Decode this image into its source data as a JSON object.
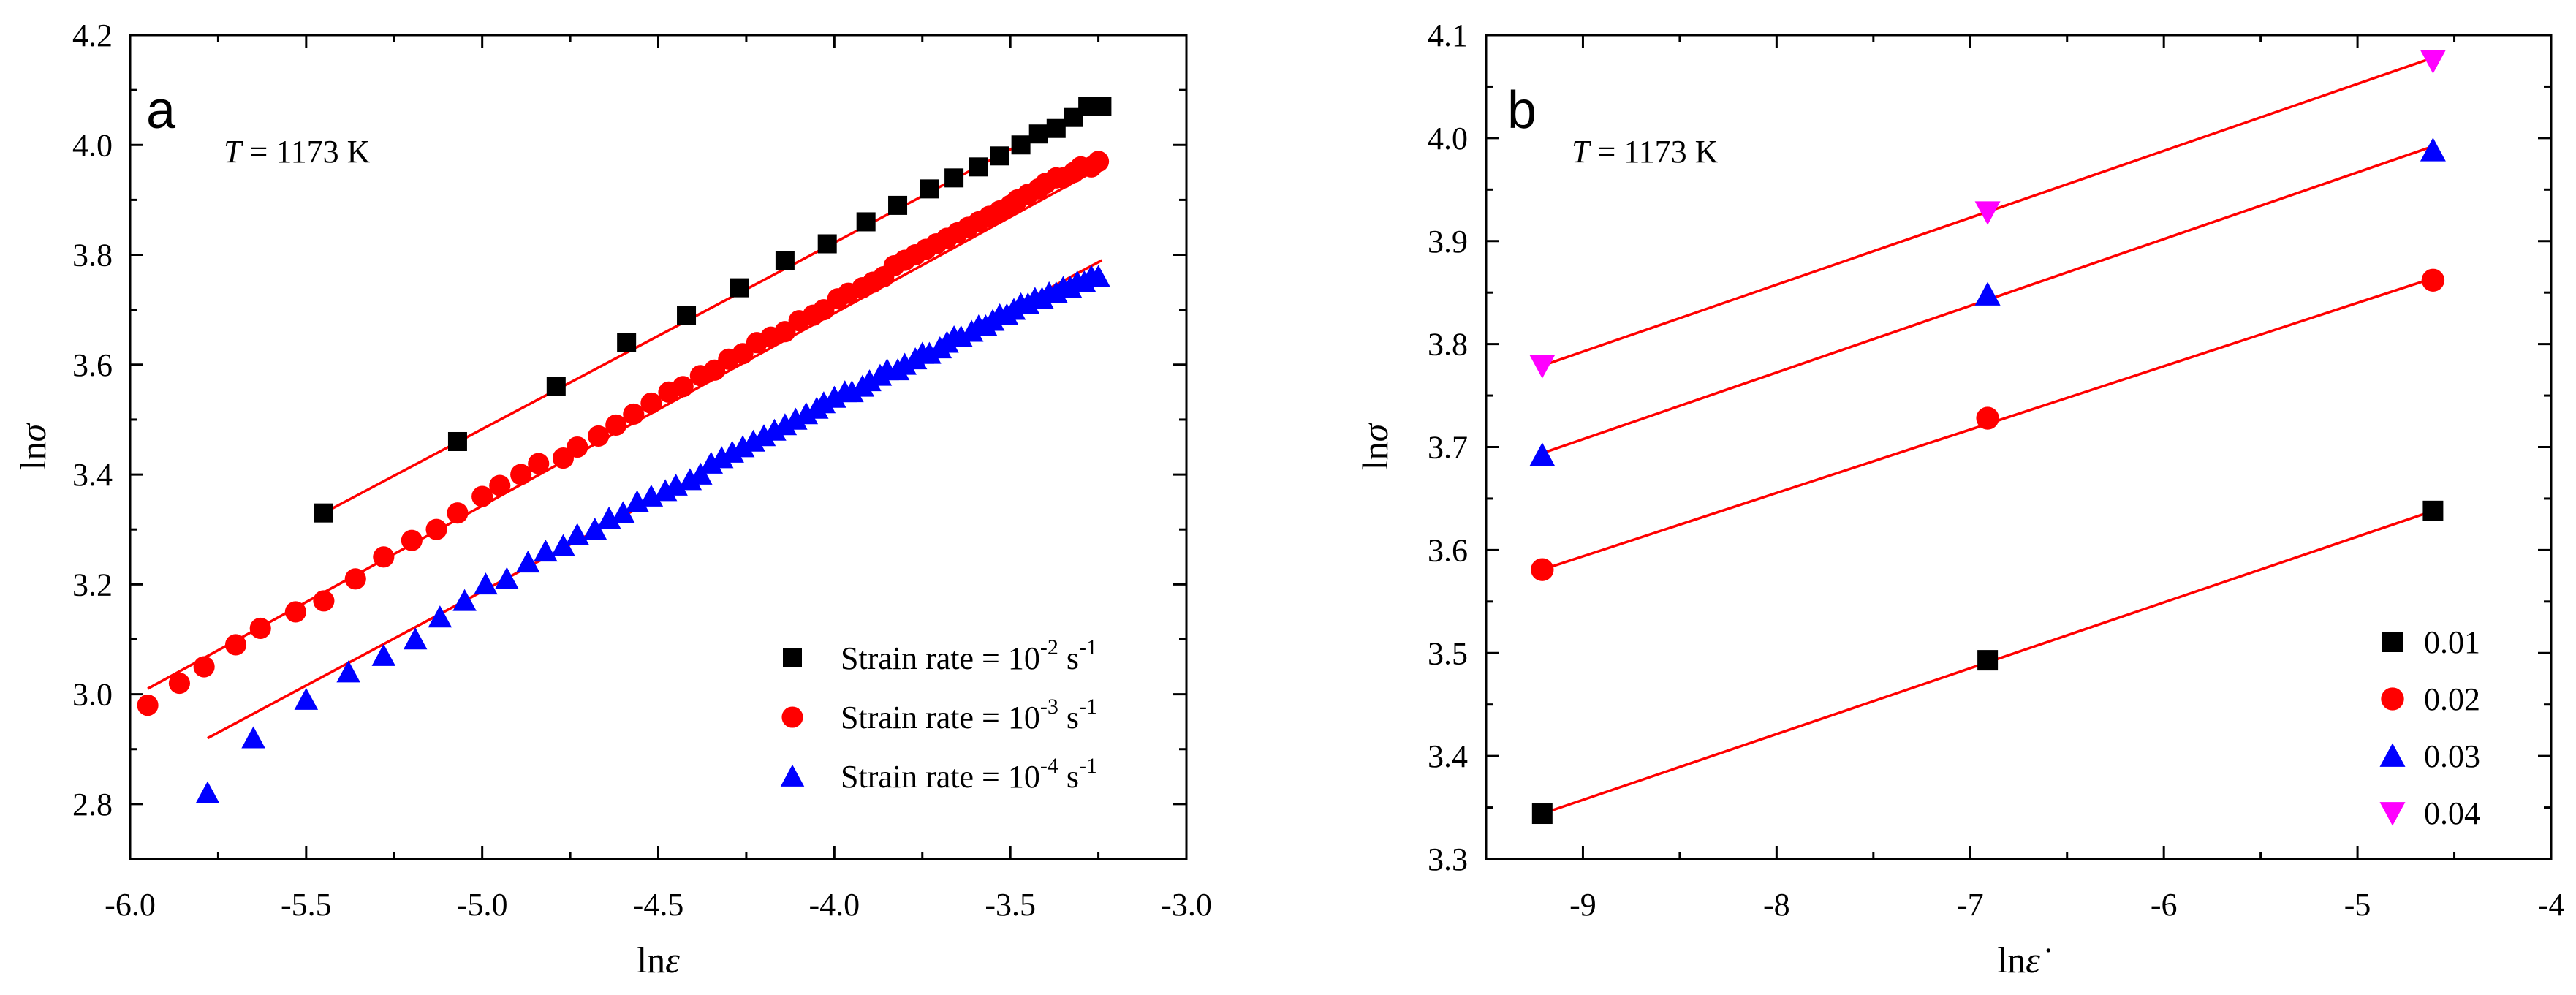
{
  "chart_data": [
    {
      "type": "scatter",
      "panel_label": "a",
      "annotation": {
        "var": "T",
        "text": " = 1173 K"
      },
      "xlabel": {
        "prefix": "ln",
        "var": "ε"
      },
      "ylabel": {
        "prefix": "ln",
        "var": "σ"
      },
      "xlim": [
        -6.0,
        -3.0
      ],
      "ylim": [
        2.7,
        4.2
      ],
      "xticks": [
        "-6.0",
        "-5.5",
        "-5.0",
        "-4.5",
        "-4.0",
        "-3.5",
        "-3.0"
      ],
      "yticks": [
        "2.8",
        "3.0",
        "3.2",
        "3.4",
        "3.6",
        "3.8",
        "4.0",
        "4.2"
      ],
      "fit_color": "#ff0000",
      "series": [
        {
          "name": "Strain rate = 10-2 s-1",
          "legend": {
            "pre": "Strain rate = 10",
            "exp1": "-2",
            "mid": " s",
            "exp2": "-1"
          },
          "marker": "square",
          "color": "#000000",
          "x": [
            -5.45,
            -5.07,
            -4.79,
            -4.59,
            -4.42,
            -4.27,
            -4.14,
            -4.02,
            -3.91,
            -3.82,
            -3.73,
            -3.66,
            -3.59,
            -3.53,
            -3.47,
            -3.42,
            -3.37,
            -3.32,
            -3.28,
            -3.24
          ],
          "y": [
            3.33,
            3.46,
            3.56,
            3.64,
            3.69,
            3.74,
            3.79,
            3.82,
            3.86,
            3.89,
            3.92,
            3.94,
            3.96,
            3.98,
            4.0,
            4.02,
            4.03,
            4.05,
            4.07,
            4.07
          ],
          "fit": {
            "x": [
              -5.45,
              -3.24
            ],
            "y": [
              3.33,
              4.08
            ]
          }
        },
        {
          "name": "Strain rate = 10-3 s-1",
          "legend": {
            "pre": "Strain rate = 10",
            "exp1": "-3",
            "mid": " s",
            "exp2": "-1"
          },
          "marker": "circle",
          "color": "#ff0000",
          "x": [
            -5.95,
            -5.86,
            -5.79,
            -5.7,
            -5.63,
            -5.53,
            -5.45,
            -5.36,
            -5.28,
            -5.2,
            -5.13,
            -5.07,
            -5.0,
            -4.95,
            -4.89,
            -4.84,
            -4.77,
            -4.73,
            -4.67,
            -4.62,
            -4.57,
            -4.52,
            -4.47,
            -4.43,
            -4.38,
            -4.34,
            -4.3,
            -4.26,
            -4.22,
            -4.18,
            -4.14,
            -4.1,
            -4.06,
            -4.03,
            -3.99,
            -3.96,
            -3.92,
            -3.89,
            -3.86,
            -3.83,
            -3.8,
            -3.77,
            -3.74,
            -3.71,
            -3.68,
            -3.65,
            -3.62,
            -3.59,
            -3.56,
            -3.53,
            -3.5,
            -3.48,
            -3.45,
            -3.42,
            -3.4,
            -3.37,
            -3.35,
            -3.32,
            -3.3,
            -3.27,
            -3.25
          ],
          "y": [
            2.98,
            3.02,
            3.05,
            3.09,
            3.12,
            3.15,
            3.17,
            3.21,
            3.25,
            3.28,
            3.3,
            3.33,
            3.36,
            3.38,
            3.4,
            3.42,
            3.43,
            3.45,
            3.47,
            3.49,
            3.51,
            3.53,
            3.55,
            3.56,
            3.58,
            3.59,
            3.61,
            3.62,
            3.64,
            3.65,
            3.66,
            3.68,
            3.69,
            3.7,
            3.72,
            3.73,
            3.74,
            3.75,
            3.76,
            3.78,
            3.79,
            3.8,
            3.81,
            3.82,
            3.83,
            3.84,
            3.85,
            3.86,
            3.87,
            3.88,
            3.89,
            3.9,
            3.91,
            3.92,
            3.93,
            3.94,
            3.94,
            3.95,
            3.96,
            3.96,
            3.97
          ],
          "fit": {
            "x": [
              -5.95,
              -3.24
            ],
            "y": [
              3.01,
              3.96
            ]
          }
        },
        {
          "name": "Strain rate = 10-4 s-1",
          "legend": {
            "pre": "Strain rate = 10",
            "exp1": "-4",
            "mid": " s",
            "exp2": "-1"
          },
          "marker": "triangle",
          "color": "#0000ff",
          "x": [
            -5.78,
            -5.65,
            -5.5,
            -5.38,
            -5.28,
            -5.19,
            -5.12,
            -5.05,
            -4.99,
            -4.93,
            -4.87,
            -4.82,
            -4.77,
            -4.73,
            -4.68,
            -4.64,
            -4.6,
            -4.56,
            -4.52,
            -4.48,
            -4.45,
            -4.41,
            -4.38,
            -4.35,
            -4.32,
            -4.29,
            -4.26,
            -4.23,
            -4.2,
            -4.17,
            -4.14,
            -4.11,
            -4.08,
            -4.05,
            -4.03,
            -4.0,
            -3.97,
            -3.95,
            -3.92,
            -3.9,
            -3.87,
            -3.85,
            -3.82,
            -3.8,
            -3.77,
            -3.75,
            -3.73,
            -3.7,
            -3.68,
            -3.66,
            -3.64,
            -3.61,
            -3.59,
            -3.57,
            -3.55,
            -3.53,
            -3.51,
            -3.49,
            -3.47,
            -3.45,
            -3.43,
            -3.41,
            -3.39,
            -3.37,
            -3.35,
            -3.33,
            -3.31,
            -3.29,
            -3.27,
            -3.25
          ],
          "y": [
            2.82,
            2.92,
            2.99,
            3.04,
            3.07,
            3.1,
            3.14,
            3.17,
            3.2,
            3.21,
            3.24,
            3.26,
            3.27,
            3.29,
            3.3,
            3.32,
            3.33,
            3.35,
            3.36,
            3.37,
            3.38,
            3.39,
            3.4,
            3.42,
            3.43,
            3.44,
            3.45,
            3.46,
            3.47,
            3.48,
            3.49,
            3.5,
            3.51,
            3.52,
            3.53,
            3.54,
            3.55,
            3.55,
            3.56,
            3.57,
            3.58,
            3.59,
            3.59,
            3.6,
            3.61,
            3.62,
            3.62,
            3.63,
            3.64,
            3.65,
            3.65,
            3.66,
            3.67,
            3.67,
            3.68,
            3.69,
            3.69,
            3.7,
            3.71,
            3.71,
            3.72,
            3.72,
            3.73,
            3.73,
            3.74,
            3.74,
            3.75,
            3.75,
            3.76,
            3.76
          ],
          "fit": {
            "x": [
              -5.78,
              -3.24
            ],
            "y": [
              2.92,
              3.79
            ]
          }
        }
      ]
    },
    {
      "type": "scatter",
      "panel_label": "b",
      "annotation": {
        "var": "T",
        "text": " = 1173 K"
      },
      "xlabel": {
        "prefix": "ln",
        "var": "ε̇"
      },
      "ylabel": {
        "prefix": "ln",
        "var": "σ"
      },
      "xlim": [
        -9.5,
        -4.0
      ],
      "ylim": [
        3.3,
        4.1
      ],
      "xticks": [
        "-9",
        "-8",
        "-7",
        "-6",
        "-5",
        "-4"
      ],
      "yticks": [
        "3.3",
        "3.4",
        "3.5",
        "3.6",
        "3.7",
        "3.8",
        "3.9",
        "4.0",
        "4.1"
      ],
      "fit_color": "#ff0000",
      "series": [
        {
          "name": "0.01",
          "legend": {
            "pre": "0.01"
          },
          "marker": "square",
          "color": "#000000",
          "x": [
            -9.21,
            -6.91,
            -4.61
          ],
          "y": [
            3.344,
            3.493,
            3.638
          ],
          "fit": {
            "x": [
              -9.21,
              -4.61
            ],
            "y": [
              3.344,
              3.638
            ]
          }
        },
        {
          "name": "0.02",
          "legend": {
            "pre": "0.02"
          },
          "marker": "circle",
          "color": "#ff0000",
          "x": [
            -9.21,
            -6.91,
            -4.61
          ],
          "y": [
            3.581,
            3.728,
            3.862
          ],
          "fit": {
            "x": [
              -9.21,
              -4.61
            ],
            "y": [
              3.581,
              3.864
            ]
          }
        },
        {
          "name": "0.03",
          "legend": {
            "pre": "0.03"
          },
          "marker": "triangle",
          "color": "#0000ff",
          "x": [
            -9.21,
            -6.91,
            -4.61
          ],
          "y": [
            3.692,
            3.848,
            3.988
          ],
          "fit": {
            "x": [
              -9.21,
              -4.61
            ],
            "y": [
              3.694,
              3.992
            ]
          }
        },
        {
          "name": "0.04",
          "legend": {
            "pre": "0.04"
          },
          "marker": "triangle-down",
          "color": "#ff00ff",
          "x": [
            -9.21,
            -6.91,
            -4.61
          ],
          "y": [
            3.779,
            3.928,
            4.075
          ],
          "fit": {
            "x": [
              -9.21,
              -4.61
            ],
            "y": [
              3.779,
              4.078
            ]
          }
        }
      ]
    }
  ]
}
